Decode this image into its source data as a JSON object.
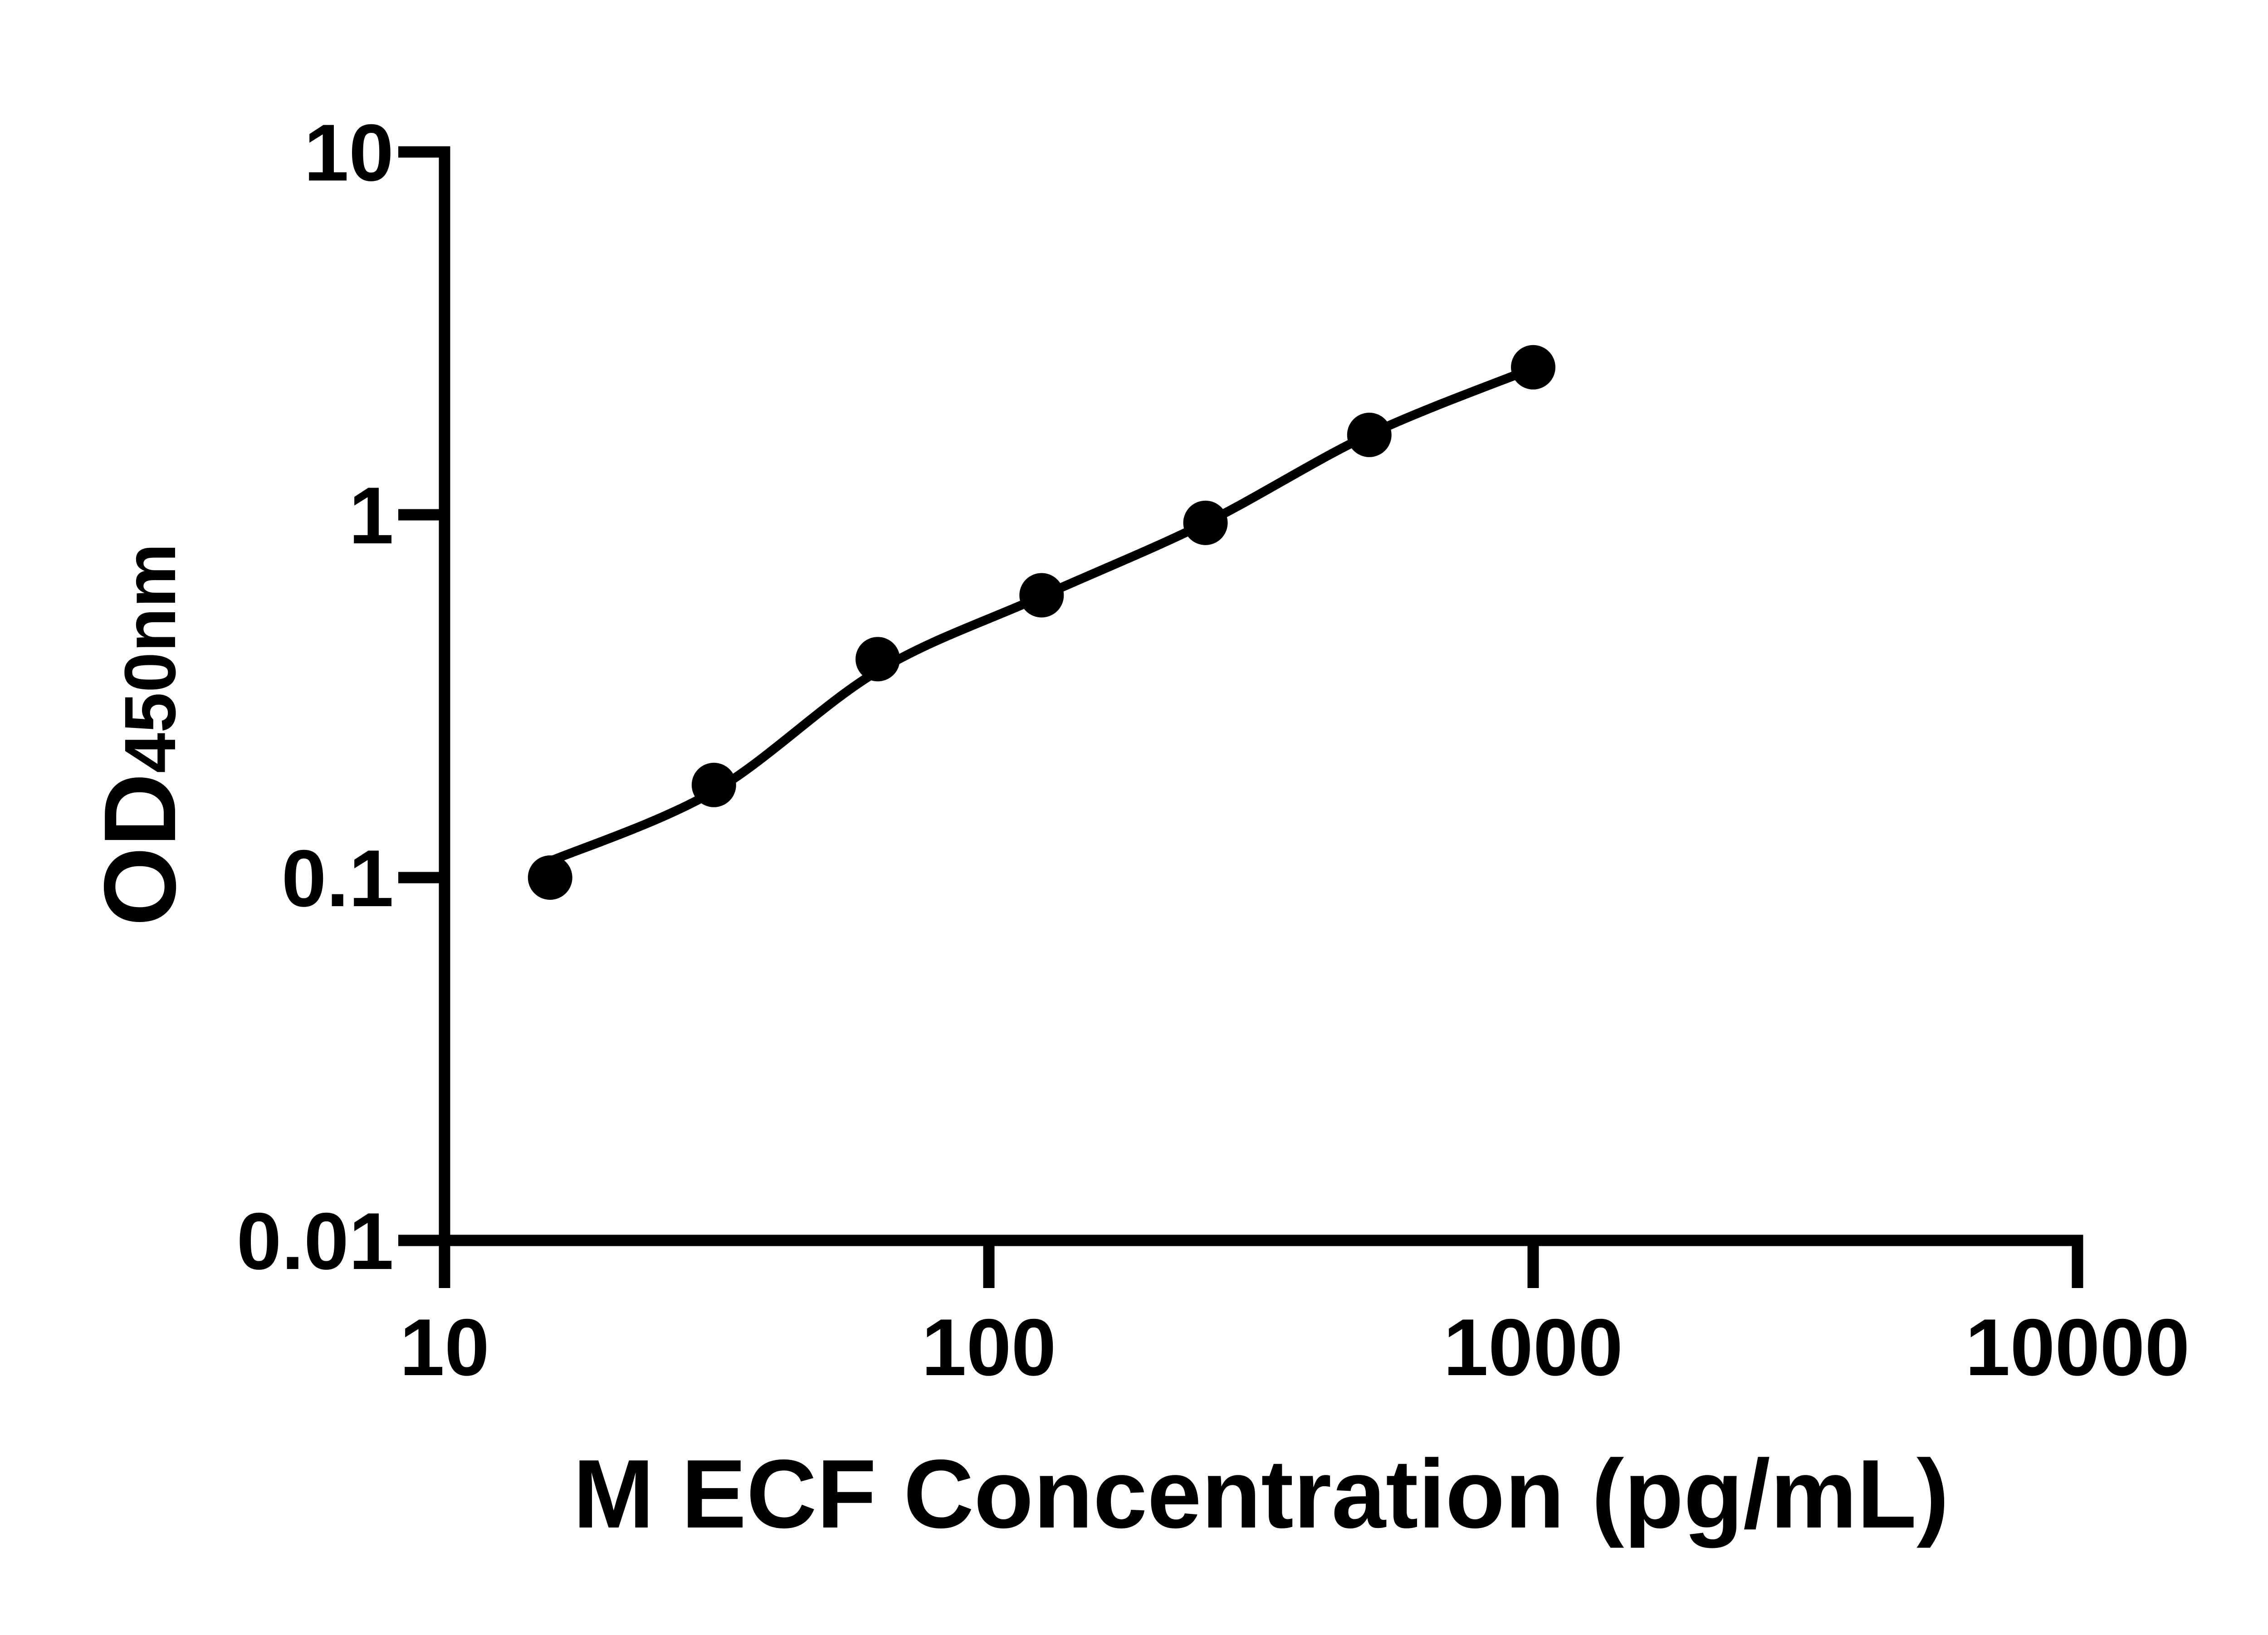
{
  "figure": {
    "background_color": "#ffffff",
    "ink_color": "#000000"
  },
  "chart_data": {
    "type": "scatter",
    "title": "",
    "xlabel": "M ECF Concentration (pg/mL)",
    "ylabel": "OD",
    "ylabel_subscript": "450nm",
    "x_scale": "log10",
    "y_scale": "log10",
    "xlim": [
      10,
      10000
    ],
    "ylim": [
      0.01,
      10
    ],
    "grid": false,
    "legend": null,
    "x_axis": {
      "ticks": [
        {
          "value": 10,
          "label": "10"
        },
        {
          "value": 100,
          "label": "100"
        },
        {
          "value": 1000,
          "label": "1000"
        },
        {
          "value": 10000,
          "label": "10000"
        }
      ]
    },
    "y_axis": {
      "ticks": [
        {
          "value": 10,
          "label": "10"
        },
        {
          "value": 1,
          "label": "1"
        },
        {
          "value": 0.1,
          "label": "0.1"
        },
        {
          "value": 0.01,
          "label": "0.01"
        }
      ]
    },
    "series": [
      {
        "marker": "filled-circle",
        "x": [
          15.63,
          31.25,
          62.5,
          125,
          250,
          500,
          1000
        ],
        "y": [
          0.1,
          0.18,
          0.4,
          0.6,
          0.95,
          1.66,
          2.55
        ]
      }
    ],
    "fit_curve": {
      "x": [
        15.63,
        31.25,
        62.5,
        125,
        250,
        500,
        1000
      ],
      "y": [
        0.111,
        0.173,
        0.371,
        0.596,
        0.949,
        1.664,
        2.534
      ]
    }
  }
}
